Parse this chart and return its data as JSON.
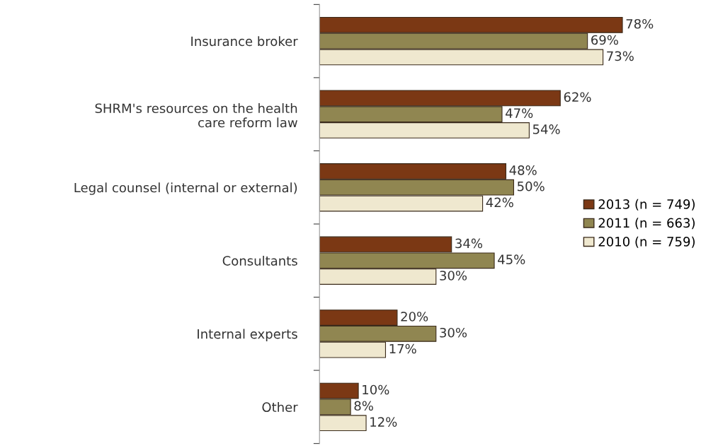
{
  "chart_data": {
    "type": "bar",
    "orientation": "horizontal",
    "categories": [
      "Insurance broker",
      "SHRM's resources on the health\ncare reform law",
      "Legal counsel (internal or external)",
      "Consultants",
      "Internal experts",
      "Other"
    ],
    "series": [
      {
        "name": "2013 (n = 749)",
        "color": "#7b3814",
        "values": [
          78,
          62,
          48,
          34,
          20,
          10
        ],
        "value_labels": [
          "78%",
          "62%",
          "48%",
          "34%",
          "20%",
          "10%"
        ]
      },
      {
        "name": "2011 (n = 663)",
        "color": "#908651",
        "values": [
          69,
          47,
          50,
          45,
          30,
          8
        ],
        "value_labels": [
          "69%",
          "47%",
          "50%",
          "45%",
          "30%",
          "8%"
        ]
      },
      {
        "name": "2010 (n = 759)",
        "color": "#efe8cf",
        "values": [
          73,
          54,
          42,
          30,
          17,
          12
        ],
        "value_labels": [
          "73%",
          "54%",
          "42%",
          "30%",
          "17%",
          "12%"
        ]
      }
    ],
    "legend": "right",
    "grid": false
  }
}
